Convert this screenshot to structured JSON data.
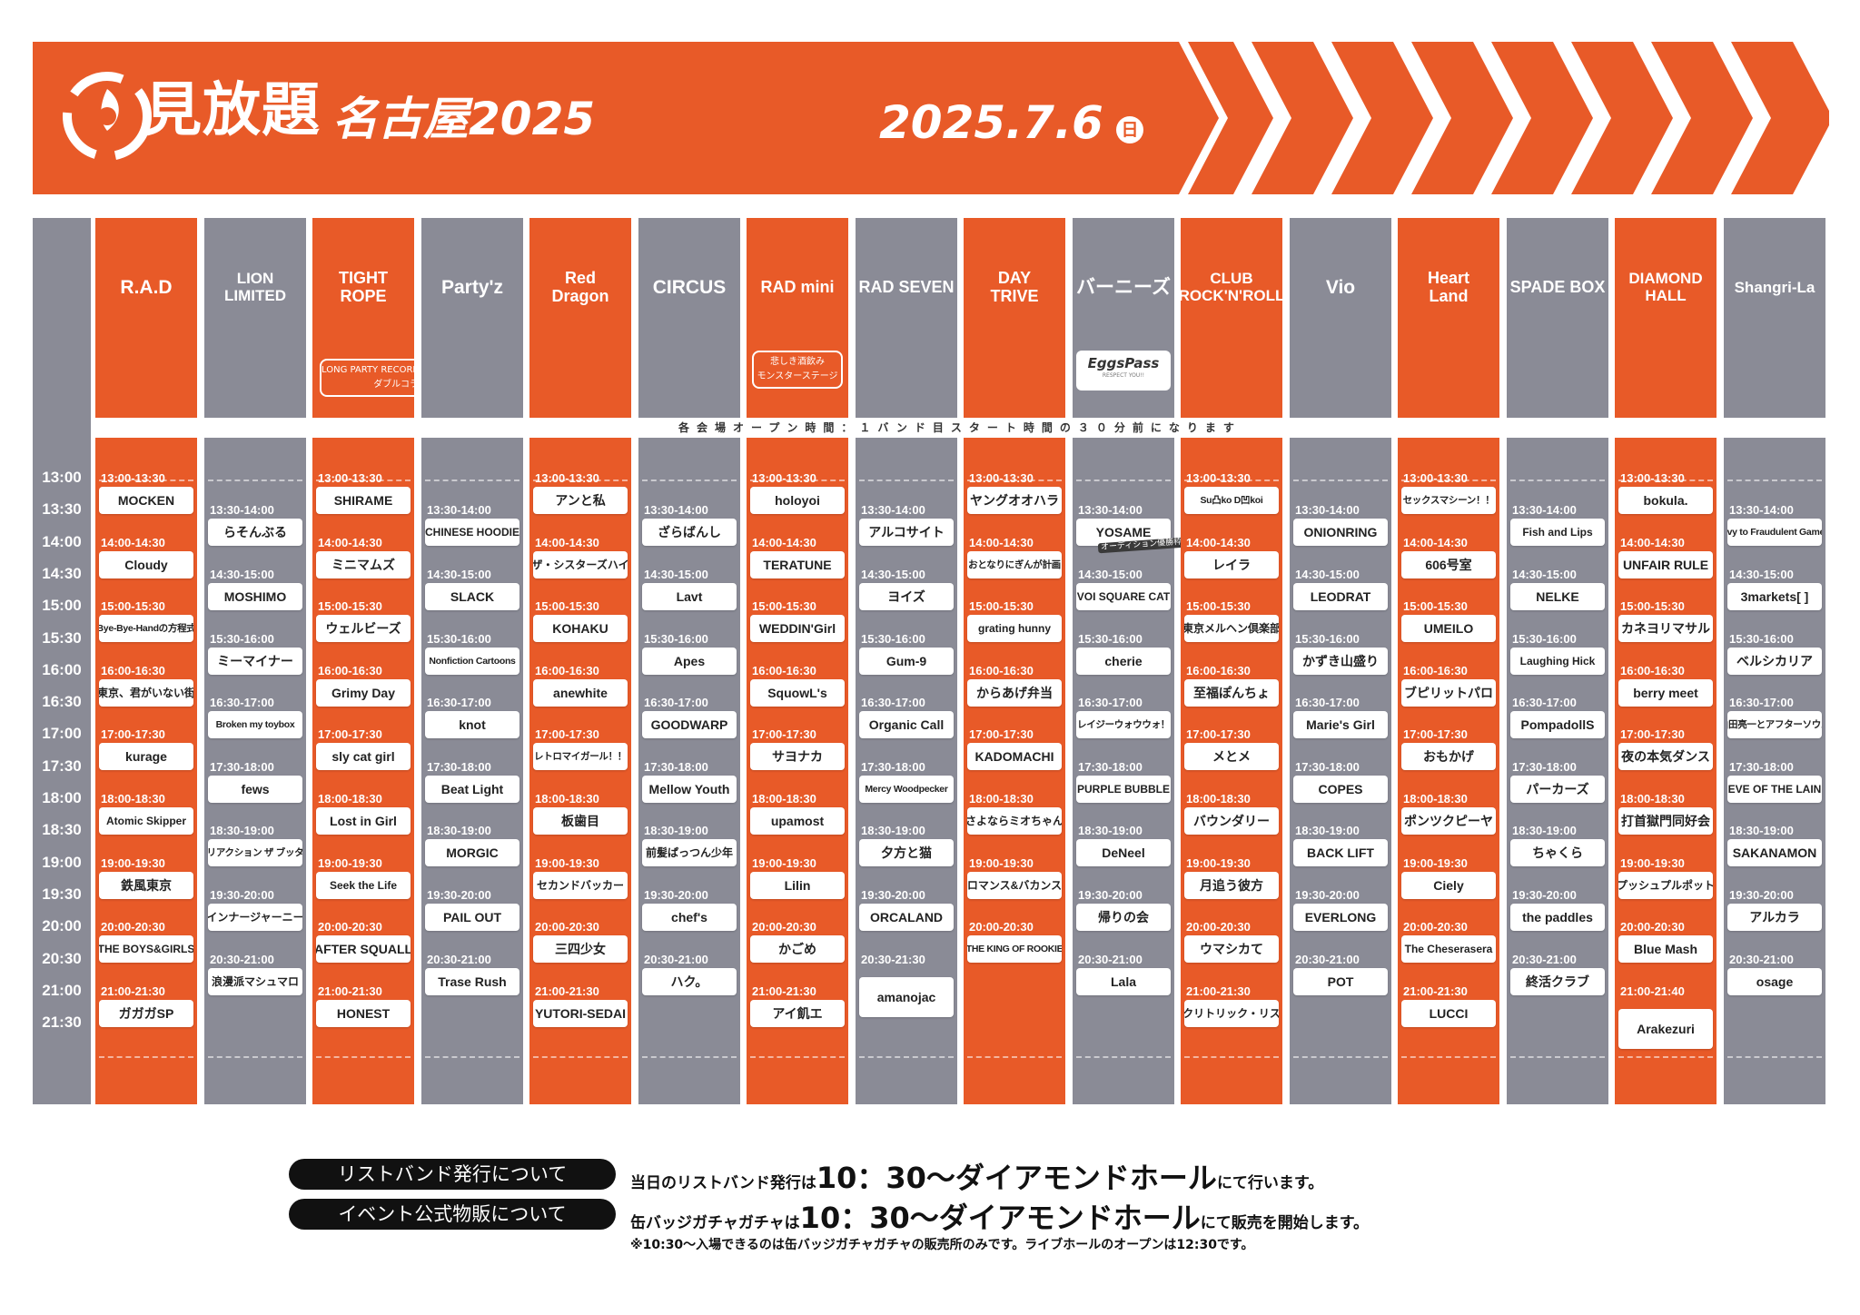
{
  "header": {
    "logo_text": "見放題",
    "subtitle": "名古屋2025",
    "date": "2025.7.6",
    "day_of_week": "日",
    "colors": {
      "brand_orange": "#e85a28",
      "grey": "#8a8b96",
      "white": "#ffffff"
    }
  },
  "open_note": "各会場オープン時間：１バンド目スタート時間の３０分前になります",
  "time_labels": [
    "13:00",
    "13:30",
    "14:00",
    "14:30",
    "15:00",
    "15:30",
    "16:00",
    "16:30",
    "17:00",
    "17:30",
    "18:00",
    "18:30",
    "19:00",
    "19:30",
    "20:00",
    "20:30",
    "21:00",
    "21:30"
  ],
  "venues": [
    {
      "name": "R.A.D",
      "color": "orange",
      "slots": [
        {
          "time": "13:00-13:30",
          "band": "MOCKEN"
        },
        {
          "time": "14:00-14:30",
          "band": "Cloudy"
        },
        {
          "time": "15:00-15:30",
          "band": "Bye-Bye-Handの方程式"
        },
        {
          "time": "16:00-16:30",
          "band": "東京、君がいない街"
        },
        {
          "time": "17:00-17:30",
          "band": "kurage"
        },
        {
          "time": "18:00-18:30",
          "band": "Atomic Skipper"
        },
        {
          "time": "19:00-19:30",
          "band": "鉄風東京"
        },
        {
          "time": "20:00-20:30",
          "band": "THE BOYS&GIRLS"
        },
        {
          "time": "21:00-21:30",
          "band": "ガガガSP"
        }
      ]
    },
    {
      "name": "LION\nLIMITED",
      "color": "grey",
      "slots": [
        {
          "time": "13:30-14:00",
          "band": "らそんぶる"
        },
        {
          "time": "14:30-15:00",
          "band": "MOSHIMO"
        },
        {
          "time": "15:30-16:00",
          "band": "ミーマイナー"
        },
        {
          "time": "16:30-17:00",
          "band": "Broken my toybox"
        },
        {
          "time": "17:30-18:00",
          "band": "fews"
        },
        {
          "time": "18:30-19:00",
          "band": "リアクション ザ ブッタ"
        },
        {
          "time": "19:30-20:00",
          "band": "インナージャーニー"
        },
        {
          "time": "20:30-21:00",
          "band": "浪漫派マシュマロ"
        }
      ]
    },
    {
      "name": "TIGHT\nROPE",
      "color": "orange",
      "collab": [
        "LONG PARTY RECORDS x RECORDSHOP ZOO",
        "ダブルコラボステージ"
      ],
      "slots": [
        {
          "time": "13:00-13:30",
          "band": "SHIRAME"
        },
        {
          "time": "14:00-14:30",
          "band": "ミニマムズ"
        },
        {
          "time": "15:00-15:30",
          "band": "ウェルビーズ"
        },
        {
          "time": "16:00-16:30",
          "band": "Grimy Day"
        },
        {
          "time": "17:00-17:30",
          "band": "sly cat girl"
        },
        {
          "time": "18:00-18:30",
          "band": "Lost in Girl"
        },
        {
          "time": "19:00-19:30",
          "band": "Seek the Life"
        },
        {
          "time": "20:00-20:30",
          "band": "AFTER SQUALL"
        },
        {
          "time": "21:00-21:30",
          "band": "HONEST"
        }
      ]
    },
    {
      "name": "Party'z",
      "color": "grey",
      "slots": [
        {
          "time": "13:30-14:00",
          "band": "CHINESE HOODIE"
        },
        {
          "time": "14:30-15:00",
          "band": "SLACK"
        },
        {
          "time": "15:30-16:00",
          "band": "Nonfiction Cartoons"
        },
        {
          "time": "16:30-17:00",
          "band": "knot"
        },
        {
          "time": "17:30-18:00",
          "band": "Beat Light"
        },
        {
          "time": "18:30-19:00",
          "band": "MORGIC"
        },
        {
          "time": "19:30-20:00",
          "band": "PAIL OUT"
        },
        {
          "time": "20:30-21:00",
          "band": "Trase Rush"
        }
      ]
    },
    {
      "name": "Red\nDragon",
      "color": "orange",
      "slots": [
        {
          "time": "13:00-13:30",
          "band": "アンと私"
        },
        {
          "time": "14:00-14:30",
          "band": "ザ・シスターズハイ"
        },
        {
          "time": "15:00-15:30",
          "band": "KOHAKU"
        },
        {
          "time": "16:00-16:30",
          "band": "anewhite"
        },
        {
          "time": "17:00-17:30",
          "band": "レトロマイガール！！"
        },
        {
          "time": "18:00-18:30",
          "band": "板歯目"
        },
        {
          "time": "19:00-19:30",
          "band": "セカンドバッカー"
        },
        {
          "time": "20:00-20:30",
          "band": "三四少女"
        },
        {
          "time": "21:00-21:30",
          "band": "YUTORI-SEDAI"
        }
      ]
    },
    {
      "name": "CIRCUS",
      "color": "grey",
      "slots": [
        {
          "time": "13:30-14:00",
          "band": "ざらばんし"
        },
        {
          "time": "14:30-15:00",
          "band": "Lavt"
        },
        {
          "time": "15:30-16:00",
          "band": "Apes"
        },
        {
          "time": "16:30-17:00",
          "band": "GOODWARP"
        },
        {
          "time": "17:30-18:00",
          "band": "Mellow Youth"
        },
        {
          "time": "18:30-19:00",
          "band": "前髪ぱっつん少年"
        },
        {
          "time": "19:30-20:00",
          "band": "chef's"
        },
        {
          "time": "20:30-21:00",
          "band": "ハク。"
        }
      ]
    },
    {
      "name": "RAD mini",
      "color": "orange",
      "stage": [
        "悲しき酒飲み",
        "モンスターステージ"
      ],
      "slots": [
        {
          "time": "13:00-13:30",
          "band": "holoyoi"
        },
        {
          "time": "14:00-14:30",
          "band": "TERATUNE"
        },
        {
          "time": "15:00-15:30",
          "band": "WEDDIN'Girl"
        },
        {
          "time": "16:00-16:30",
          "band": "SquowL's"
        },
        {
          "time": "17:00-17:30",
          "band": "サヨナカ"
        },
        {
          "time": "18:00-18:30",
          "band": "upamost"
        },
        {
          "time": "19:00-19:30",
          "band": "Lilin"
        },
        {
          "time": "20:00-20:30",
          "band": "かごめ"
        },
        {
          "time": "21:00-21:30",
          "band": "アイ飢エ"
        }
      ]
    },
    {
      "name": "RAD SEVEN",
      "color": "grey",
      "slots": [
        {
          "time": "13:30-14:00",
          "band": "アルコサイト"
        },
        {
          "time": "14:30-15:00",
          "band": "ヨイズ"
        },
        {
          "time": "15:30-16:00",
          "band": "Gum-9"
        },
        {
          "time": "16:30-17:00",
          "band": "Organic Call"
        },
        {
          "time": "17:30-18:00",
          "band": "Mercy Woodpecker"
        },
        {
          "time": "18:30-19:00",
          "band": "夕方と猫"
        },
        {
          "time": "19:30-20:00",
          "band": "ORCALAND"
        },
        {
          "time": "20:30-21:30",
          "band": "amanojac"
        }
      ]
    },
    {
      "name": "DAY\nTRIVE",
      "color": "orange",
      "slots": [
        {
          "time": "13:00-13:30",
          "band": "ヤングオオハラ"
        },
        {
          "time": "14:00-14:30",
          "band": "おとなりにぎんが計画"
        },
        {
          "time": "15:00-15:30",
          "band": "grating hunny"
        },
        {
          "time": "16:00-16:30",
          "band": "からあげ弁当"
        },
        {
          "time": "17:00-17:30",
          "band": "KADOMACHI"
        },
        {
          "time": "18:00-18:30",
          "band": "さよならミオちゃん"
        },
        {
          "time": "19:00-19:30",
          "band": "ロマンス&バカンス"
        },
        {
          "time": "20:00-20:30",
          "band": "THE KING OF ROOKIE"
        }
      ]
    },
    {
      "name": "バーニーズ",
      "color": "grey",
      "eggs": [
        "EggsPass",
        "RESPECT YOU!!"
      ],
      "slots": [
        {
          "time": "13:30-14:00",
          "band": "YOSAME",
          "badge": "オーディション優勝枠"
        },
        {
          "time": "14:30-15:00",
          "band": "VOI SQUARE CAT"
        },
        {
          "time": "15:30-16:00",
          "band": "cherie"
        },
        {
          "time": "16:30-17:00",
          "band": "クレイジーウォウウォ！！"
        },
        {
          "time": "17:30-18:00",
          "band": "PURPLE BUBBLE"
        },
        {
          "time": "18:30-19:00",
          "band": "DeNeel"
        },
        {
          "time": "19:30-20:00",
          "band": "帰りの会"
        },
        {
          "time": "20:30-21:00",
          "band": "Lala"
        }
      ]
    },
    {
      "name": "CLUB\nROCK'N'ROLL",
      "color": "orange",
      "slots": [
        {
          "time": "13:00-13:30",
          "band": "Su凸ko D凹koi"
        },
        {
          "time": "14:00-14:30",
          "band": "レイラ"
        },
        {
          "time": "15:00-15:30",
          "band": "東京メルヘン倶楽部"
        },
        {
          "time": "16:00-16:30",
          "band": "至福ぽんちょ"
        },
        {
          "time": "17:00-17:30",
          "band": "メとメ"
        },
        {
          "time": "18:00-18:30",
          "band": "バウンダリー"
        },
        {
          "time": "19:00-19:30",
          "band": "月追う彼方"
        },
        {
          "time": "20:00-20:30",
          "band": "ウマシカて"
        },
        {
          "time": "21:00-21:30",
          "band": "クリトリック・リス"
        }
      ]
    },
    {
      "name": "Vio",
      "color": "grey",
      "slots": [
        {
          "time": "13:30-14:00",
          "band": "ONIONRING"
        },
        {
          "time": "14:30-15:00",
          "band": "LEODRAT"
        },
        {
          "time": "15:30-16:00",
          "band": "かずき山盛り"
        },
        {
          "time": "16:30-17:00",
          "band": "Marie's Girl"
        },
        {
          "time": "17:30-18:00",
          "band": "COPES"
        },
        {
          "time": "18:30-19:00",
          "band": "BACK LIFT"
        },
        {
          "time": "19:30-20:00",
          "band": "EVERLONG"
        },
        {
          "time": "20:30-21:00",
          "band": "POT"
        }
      ]
    },
    {
      "name": "Heart\nLand",
      "color": "orange",
      "slots": [
        {
          "time": "13:00-13:30",
          "band": "セックスマシーン！！"
        },
        {
          "time": "14:00-14:30",
          "band": "606号室"
        },
        {
          "time": "15:00-15:30",
          "band": "UMEILO"
        },
        {
          "time": "16:00-16:30",
          "band": "ブピリットパロ"
        },
        {
          "time": "17:00-17:30",
          "band": "おもかげ"
        },
        {
          "time": "18:00-18:30",
          "band": "ポンツクピーヤ"
        },
        {
          "time": "19:00-19:30",
          "band": "Ciely"
        },
        {
          "time": "20:00-20:30",
          "band": "The Cheserasera"
        },
        {
          "time": "21:00-21:30",
          "band": "LUCCI"
        }
      ]
    },
    {
      "name": "SPADE BOX",
      "color": "grey",
      "slots": [
        {
          "time": "13:30-14:00",
          "band": "Fish and Lips"
        },
        {
          "time": "14:30-15:00",
          "band": "NELKE"
        },
        {
          "time": "15:30-16:00",
          "band": "Laughing Hick"
        },
        {
          "time": "16:30-17:00",
          "band": "PompadollS"
        },
        {
          "time": "17:30-18:00",
          "band": "パーカーズ"
        },
        {
          "time": "18:30-19:00",
          "band": "ちゃくら"
        },
        {
          "time": "19:30-20:00",
          "band": "the paddles"
        },
        {
          "time": "20:30-21:00",
          "band": "終活クラブ"
        }
      ]
    },
    {
      "name": "DIAMOND\nHALL",
      "color": "orange",
      "slots": [
        {
          "time": "13:00-13:30",
          "band": "bokula."
        },
        {
          "time": "14:00-14:30",
          "band": "UNFAIR RULE"
        },
        {
          "time": "15:00-15:30",
          "band": "カネヨリマサル"
        },
        {
          "time": "16:00-16:30",
          "band": "berry meet"
        },
        {
          "time": "17:00-17:30",
          "band": "夜の本気ダンス"
        },
        {
          "time": "18:00-18:30",
          "band": "打首獄門同好会"
        },
        {
          "time": "19:00-19:30",
          "band": "プッシュプルポット"
        },
        {
          "time": "20:00-20:30",
          "band": "Blue Mash"
        },
        {
          "time": "21:00-21:40",
          "band": "Arakezuri"
        }
      ]
    },
    {
      "name": "Shangri-La",
      "color": "grey",
      "slots": [
        {
          "time": "13:30-14:00",
          "band": "Ivy to Fraudulent Game"
        },
        {
          "time": "14:30-15:00",
          "band": "3markets[ ]"
        },
        {
          "time": "15:30-16:00",
          "band": "ベルシカリア"
        },
        {
          "time": "16:30-17:00",
          "band": "山田亮一とアフターソウル"
        },
        {
          "time": "17:30-18:00",
          "band": "EVE OF THE LAIN"
        },
        {
          "time": "18:30-19:00",
          "band": "SAKANAMON"
        },
        {
          "time": "19:30-20:00",
          "band": "アルカラ"
        },
        {
          "time": "20:30-21:00",
          "band": "osage"
        }
      ]
    }
  ],
  "notes": {
    "wristband_label": "リストバンド発行について",
    "wristband_pre": "当日のリストバンド発行は",
    "wristband_big": "10：30～ダイアモンドホール",
    "wristband_post": "にて行います。",
    "merch_label": "イベント公式物販について",
    "merch_pre": "缶バッジガチャガチャは",
    "merch_big": "10：30～ダイアモンドホール",
    "merch_post": "にて販売を開始します。",
    "footnote": "※10:30～入場できるのは缶バッジガチャガチャの販売所のみです。ライブホールのオープンは12:30です。"
  }
}
